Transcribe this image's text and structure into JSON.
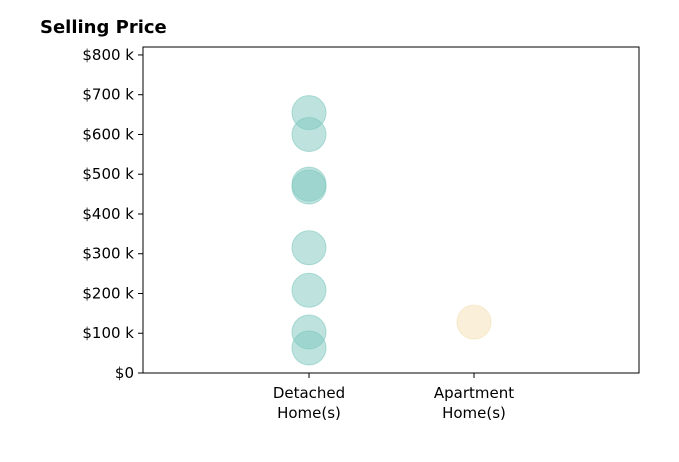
{
  "chart_data": {
    "type": "scatter",
    "title": "Selling Price",
    "xlabel": "",
    "ylabel": "",
    "categories": [
      "Detached\nHome(s)",
      "Apartment\nHome(s)"
    ],
    "y_ticks": [
      "$0",
      "$100 k",
      "$200 k",
      "$300 k",
      "$400 k",
      "$500 k",
      "$600 k",
      "$700 k",
      "$800 k"
    ],
    "ylim": [
      0,
      820000
    ],
    "grid": false,
    "series": [
      {
        "category": "Detached\nHome(s)",
        "color": "#7ec8be",
        "values": [
          655000,
          600000,
          475000,
          468000,
          315000,
          208000,
          103000,
          63000
        ]
      },
      {
        "category": "Apartment\nHome(s)",
        "color": "#f5dfb4",
        "values": [
          128000
        ]
      }
    ]
  }
}
